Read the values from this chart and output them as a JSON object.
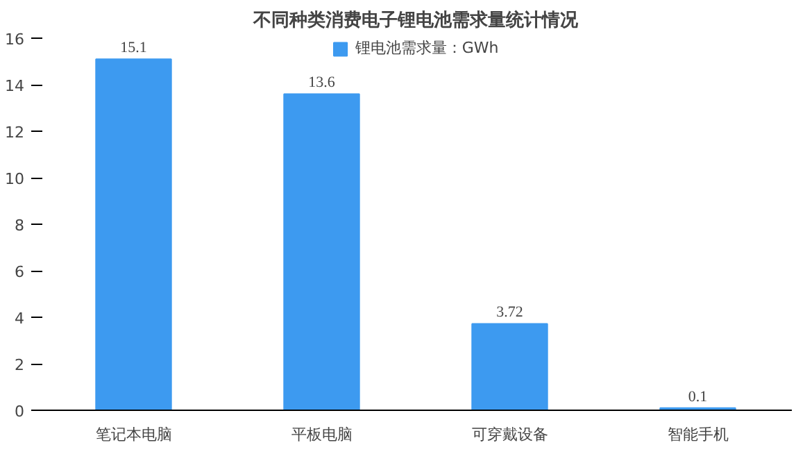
{
  "chart_data": {
    "type": "bar",
    "title": "不同种类消费电子锂电池需求量统计情况",
    "categories": [
      "笔记本电脑",
      "平板电脑",
      "可穿戴设备",
      "智能手机"
    ],
    "series": [
      {
        "name": "锂电池需求量：GWh",
        "color": "#3d9af0",
        "values": [
          15.1,
          13.6,
          3.72,
          0.1
        ]
      }
    ],
    "ylim": [
      0,
      16
    ],
    "yticks": [
      0,
      2,
      4,
      6,
      8,
      10,
      12,
      14,
      16
    ],
    "data_labels": true,
    "legend": "top",
    "grid": false
  }
}
